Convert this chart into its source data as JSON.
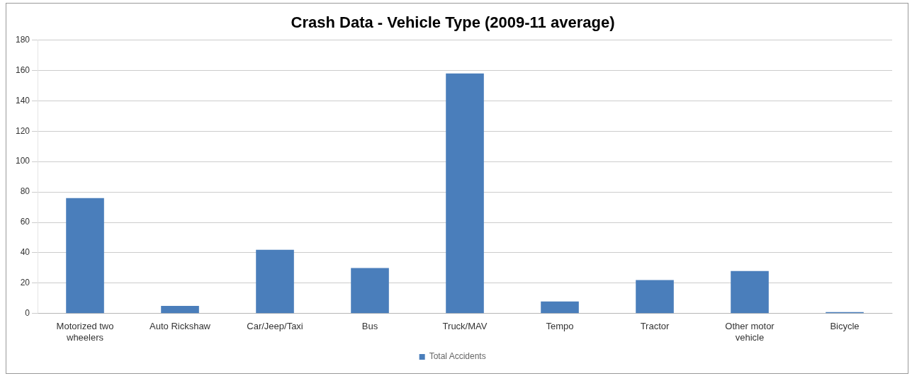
{
  "chart_data": {
    "type": "bar",
    "title": "Crash Data - Vehicle Type (2009-11 average)",
    "categories": [
      "Motorized two wheelers",
      "Auto Rickshaw",
      "Car/Jeep/Taxi",
      "Bus",
      "Truck/MAV",
      "Tempo",
      "Tractor",
      "Other motor vehicle",
      "Bicycle"
    ],
    "series": [
      {
        "name": "Total Accidents",
        "color": "#4a7ebb",
        "values": [
          76,
          5,
          42,
          30,
          158,
          8,
          22,
          28,
          1
        ]
      }
    ],
    "ylim": [
      0,
      180
    ],
    "yticks": [
      0,
      20,
      40,
      60,
      80,
      100,
      120,
      140,
      160,
      180
    ],
    "grid": "y",
    "legend": "bottom"
  }
}
